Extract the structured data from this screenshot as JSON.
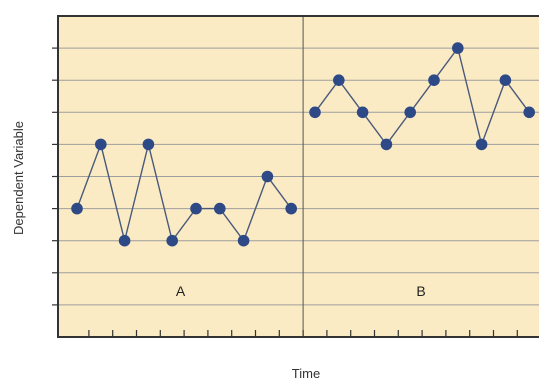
{
  "chart_data": {
    "type": "line",
    "title": "",
    "xlabel": "Time",
    "ylabel": "Dependent Variable",
    "ylim": [
      0,
      10
    ],
    "grid": true,
    "legend": "none",
    "colors": {
      "plot_background": "#FBEBC4",
      "gridline": "#9E9E9E",
      "axis": "#333333",
      "line": "#4A5A7A",
      "marker": "#2E4A86"
    },
    "phases": [
      {
        "label": "A",
        "x": [
          1,
          2,
          3,
          4,
          5,
          6,
          7,
          8,
          9,
          10
        ],
        "values": [
          4,
          6,
          3,
          6,
          3,
          4,
          4,
          3,
          5,
          4
        ]
      },
      {
        "label": "B",
        "x": [
          11,
          12,
          13,
          14,
          15,
          16,
          17,
          18,
          19,
          20
        ],
        "values": [
          7,
          8,
          7,
          6,
          7,
          8,
          9,
          6,
          8,
          7
        ]
      }
    ]
  }
}
